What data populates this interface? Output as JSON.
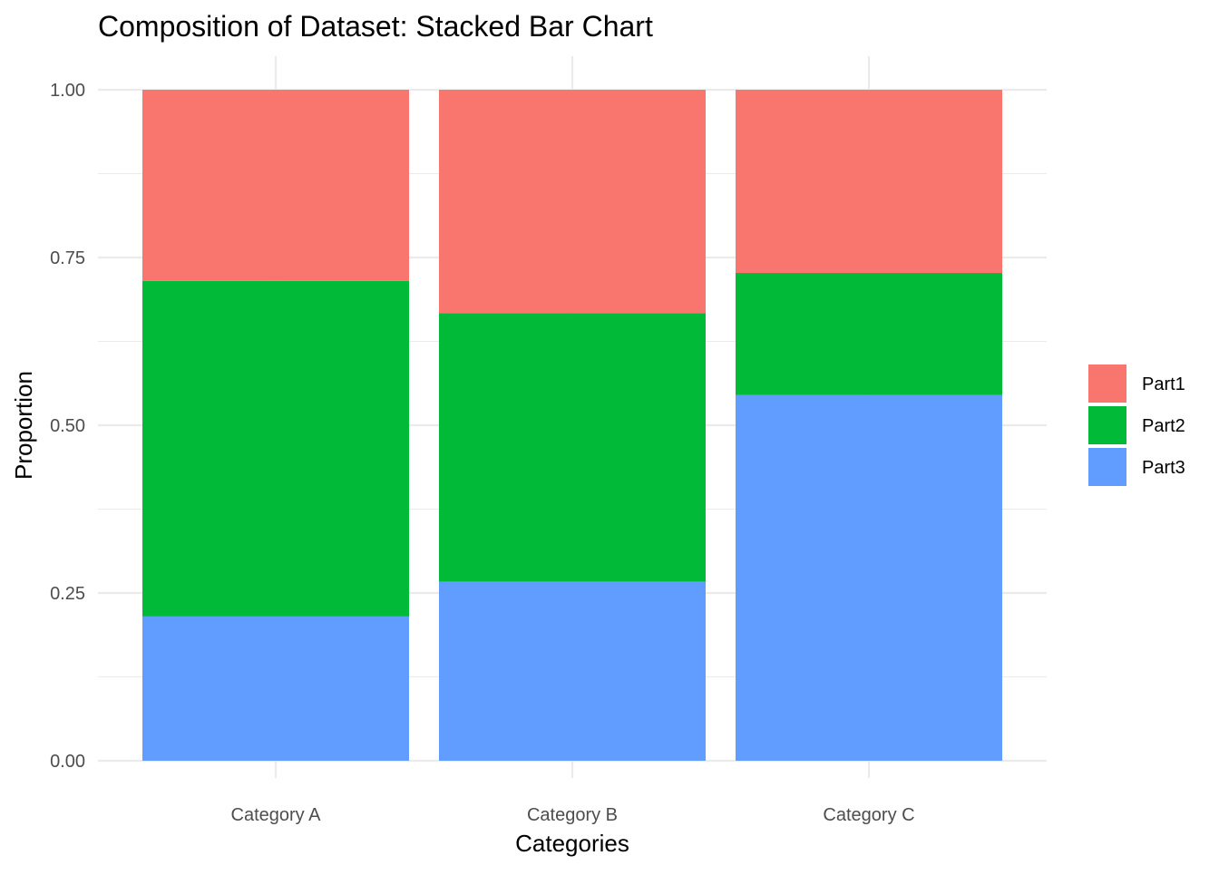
{
  "chart_data": {
    "type": "bar",
    "stacked": true,
    "title": "Composition of Dataset: Stacked Bar Chart",
    "xlabel": "Categories",
    "ylabel": "Proportion",
    "categories": [
      "Category A",
      "Category B",
      "Category C"
    ],
    "ylim": [
      0,
      1
    ],
    "yticks": [
      0,
      0.25,
      0.5,
      0.75,
      1
    ],
    "ytick_labels": [
      "0.00",
      "0.25",
      "0.50",
      "0.75",
      "1.00"
    ],
    "grid": true,
    "legend_position": "right",
    "stack_order_bottom_to_top": [
      "Part3",
      "Part2",
      "Part1"
    ],
    "series": [
      {
        "name": "Part1",
        "color": "#F8766D",
        "values": [
          0.285,
          0.333,
          0.273
        ]
      },
      {
        "name": "Part2",
        "color": "#00BA38",
        "values": [
          0.5,
          0.4,
          0.182
        ]
      },
      {
        "name": "Part3",
        "color": "#619CFF",
        "values": [
          0.215,
          0.267,
          0.545
        ]
      }
    ]
  }
}
